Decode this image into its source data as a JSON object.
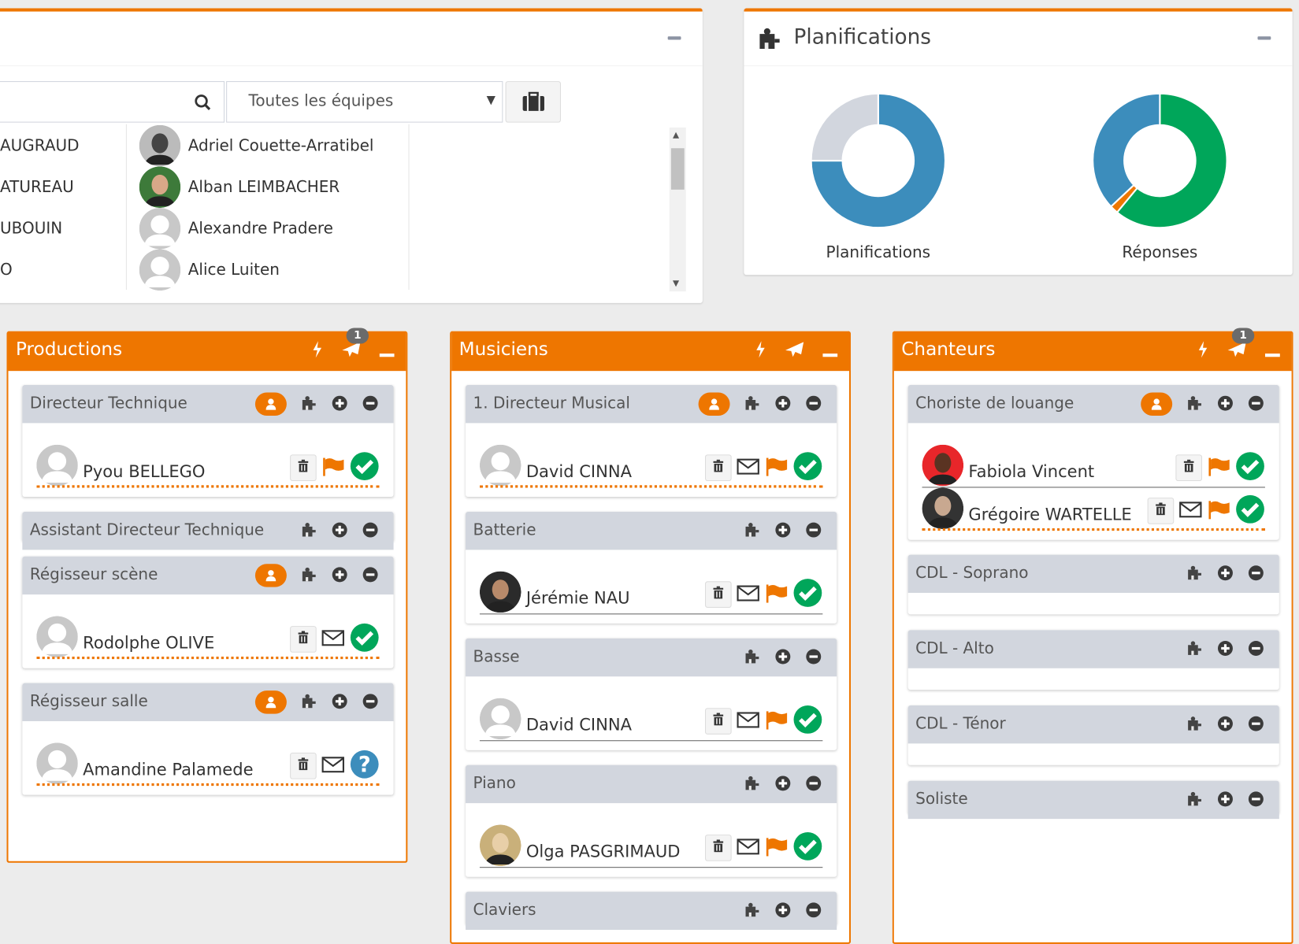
{
  "members_panel": {
    "search_placeholder": "",
    "team_select": "Toutes les équipes",
    "left_column": [
      "AUGRAUD",
      "ATUREAU",
      "UBOUIN",
      "O"
    ],
    "right_column": [
      {
        "name": "Adriel Couette-Arratibel",
        "avatar": "photo-bw"
      },
      {
        "name": "Alban LEIMBACHER",
        "avatar": "photo-green"
      },
      {
        "name": "Alexandre Pradere",
        "avatar": "default"
      },
      {
        "name": "Alice Luiten",
        "avatar": "default"
      }
    ]
  },
  "planifications_panel": {
    "title": "Planifications",
    "chart_data": [
      {
        "type": "pie",
        "label": "Planifications",
        "slices": [
          {
            "value": 75,
            "color": "#3c8dbc"
          },
          {
            "value": 25,
            "color": "#d2d6de"
          }
        ]
      },
      {
        "type": "pie",
        "label": "Réponses",
        "slices": [
          {
            "value": 61,
            "color": "#00a65a"
          },
          {
            "value": 2,
            "color": "#ee7600"
          },
          {
            "value": 37,
            "color": "#3c8dbc"
          }
        ]
      }
    ]
  },
  "colors": {
    "accent": "#ee7600",
    "section": "#d2d6de",
    "ok": "#00a65a",
    "info": "#3c8dbc"
  },
  "columns": [
    {
      "title": "Productions",
      "badge": "1",
      "sections": [
        {
          "title": "Directeur Technique",
          "pill": true,
          "people": [
            {
              "name": "Pyou BELLEGO",
              "avatar": "default",
              "dotted": true,
              "mail": false,
              "flag": true,
              "status": "check"
            }
          ]
        },
        {
          "title": "Assistant Directeur Technique",
          "pill": false,
          "people": [],
          "empty": "none"
        },
        {
          "title": "Régisseur scène",
          "pill": true,
          "people": [
            {
              "name": "Rodolphe OLIVE",
              "avatar": "default",
              "dotted": true,
              "mail": true,
              "flag": false,
              "status": "check"
            }
          ]
        },
        {
          "title": "Régisseur salle",
          "pill": true,
          "people": [
            {
              "name": "Amandine Palamede",
              "avatar": "default",
              "dotted": true,
              "mail": true,
              "flag": false,
              "status": "question"
            }
          ]
        }
      ]
    },
    {
      "title": "Musiciens",
      "badge": "",
      "sections": [
        {
          "title": "1. Directeur Musical",
          "pill": true,
          "people": [
            {
              "name": "David CINNA",
              "avatar": "default",
              "dotted": true,
              "mail": true,
              "flag": true,
              "status": "check"
            }
          ]
        },
        {
          "title": "Batterie",
          "pill": false,
          "people": [
            {
              "name": "Jérémie NAU",
              "avatar": "photo-dark",
              "dotted": false,
              "mail": true,
              "flag": true,
              "status": "check"
            }
          ]
        },
        {
          "title": "Basse",
          "pill": false,
          "people": [
            {
              "name": "David CINNA",
              "avatar": "default",
              "dotted": false,
              "mail": true,
              "flag": true,
              "status": "check"
            }
          ]
        },
        {
          "title": "Piano",
          "pill": false,
          "people": [
            {
              "name": "Olga PASGRIMAUD",
              "avatar": "photo-blond",
              "dotted": false,
              "mail": true,
              "flag": true,
              "status": "check"
            }
          ]
        },
        {
          "title": "Claviers",
          "pill": false,
          "people": []
        }
      ]
    },
    {
      "title": "Chanteurs",
      "badge": "1",
      "sections": [
        {
          "title": "Choriste de louange",
          "pill": true,
          "people": [
            {
              "name": "Fabiola Vincent",
              "avatar": "photo-red",
              "dotted": false,
              "mail": false,
              "flag": true,
              "status": "check"
            },
            {
              "name": "Grégoire WARTELLE",
              "avatar": "photo-dark2",
              "dotted": true,
              "mail": true,
              "flag": true,
              "status": "check"
            }
          ]
        },
        {
          "title": "CDL - Soprano",
          "pill": false,
          "people": [],
          "empty": "line"
        },
        {
          "title": "CDL - Alto",
          "pill": false,
          "people": [],
          "empty": "line"
        },
        {
          "title": "CDL - Ténor",
          "pill": false,
          "people": [],
          "empty": "line"
        },
        {
          "title": "Soliste",
          "pill": false,
          "people": []
        }
      ]
    }
  ]
}
